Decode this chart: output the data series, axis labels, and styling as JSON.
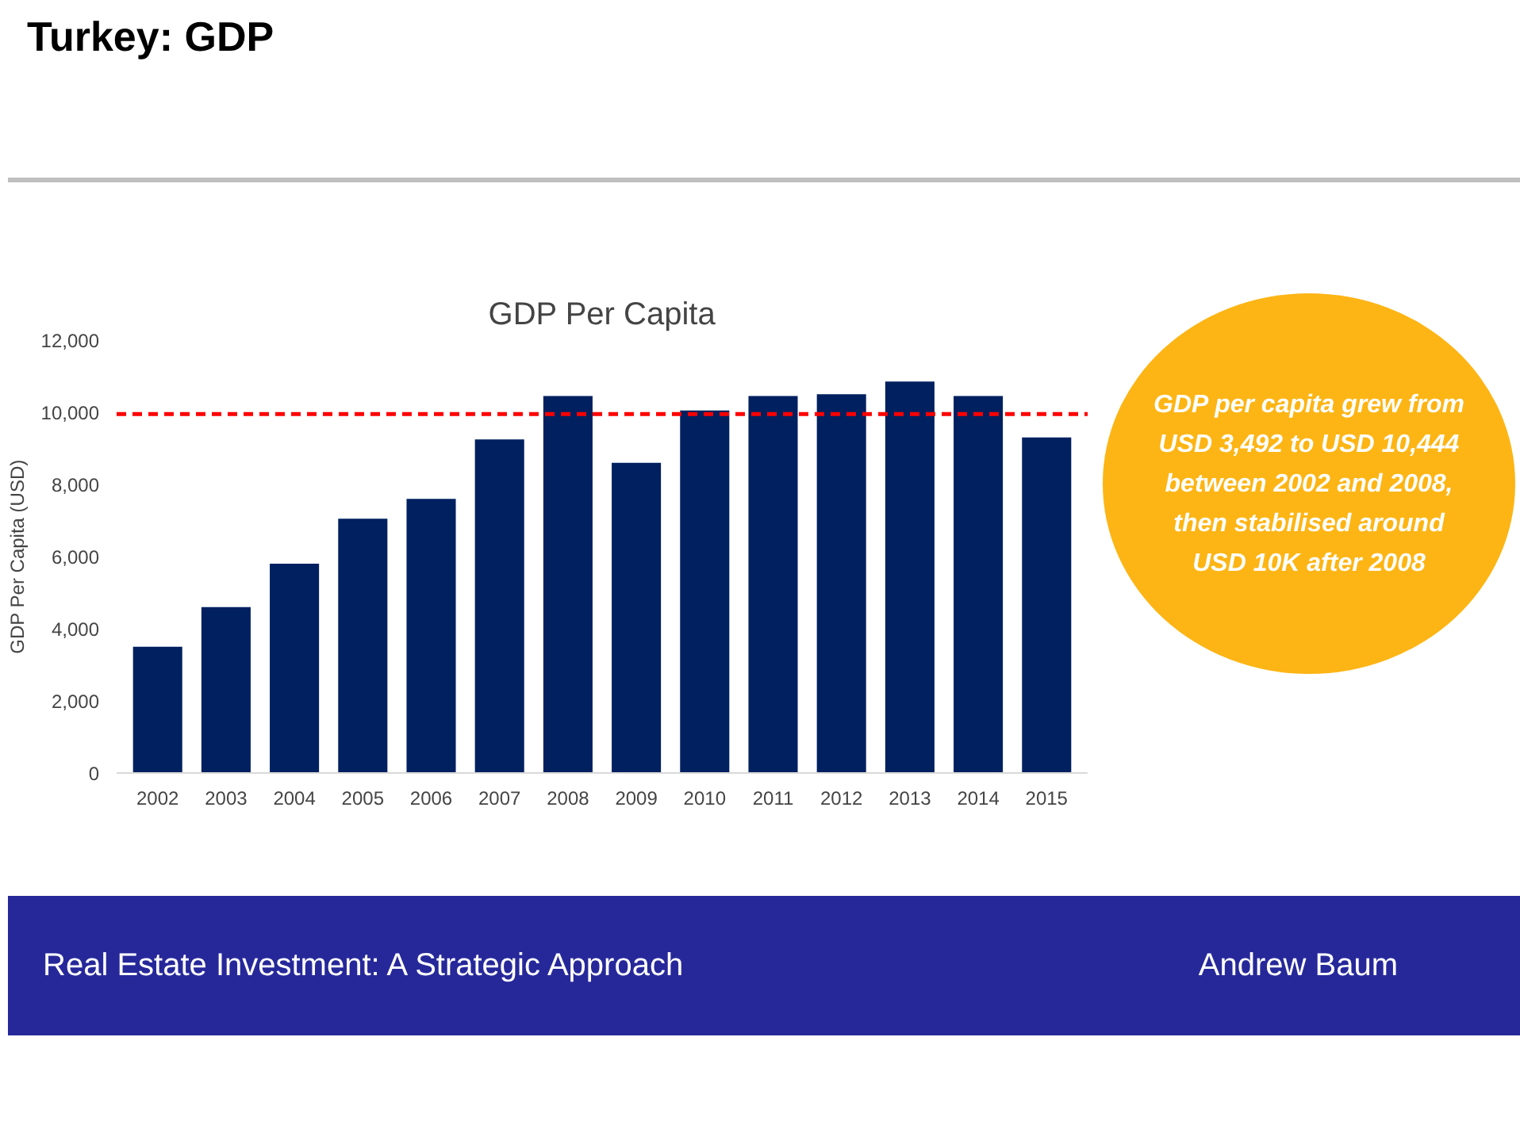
{
  "chart_data": {
    "type": "bar",
    "title": "GDP Per Capita",
    "ylabel": "GDP Per Capita (USD)",
    "categories": [
      "2002",
      "2003",
      "2004",
      "2005",
      "2006",
      "2007",
      "2008",
      "2009",
      "2010",
      "2011",
      "2012",
      "2013",
      "2014",
      "2015"
    ],
    "values": [
      3500,
      4600,
      5800,
      7050,
      7600,
      9250,
      10450,
      8600,
      10050,
      10450,
      10500,
      10850,
      10450,
      9300
    ],
    "color": "#002060",
    "ylim": [
      0,
      12000
    ],
    "yticks": [
      {
        "value": 0,
        "label": "0"
      },
      {
        "value": 2000,
        "label": "2,000"
      },
      {
        "value": 4000,
        "label": "4,000"
      },
      {
        "value": 6000,
        "label": "6,000"
      },
      {
        "value": 8000,
        "label": "8,000"
      },
      {
        "value": 10000,
        "label": "10,000"
      },
      {
        "value": 12000,
        "label": "12,000"
      }
    ],
    "ref_lines": [
      {
        "axis": "y",
        "value": 9950,
        "color": "#ff0000",
        "line_style": "dashed"
      }
    ],
    "annotations": [
      "Turkey: GDP",
      "GDP per capita grew from USD 3,492 to USD 10,444 between 2002 and 2008, then stabilised around USD 10K after 2008",
      "Real Estate Investment: A Strategic Approach",
      "Andrew Baum"
    ]
  }
}
